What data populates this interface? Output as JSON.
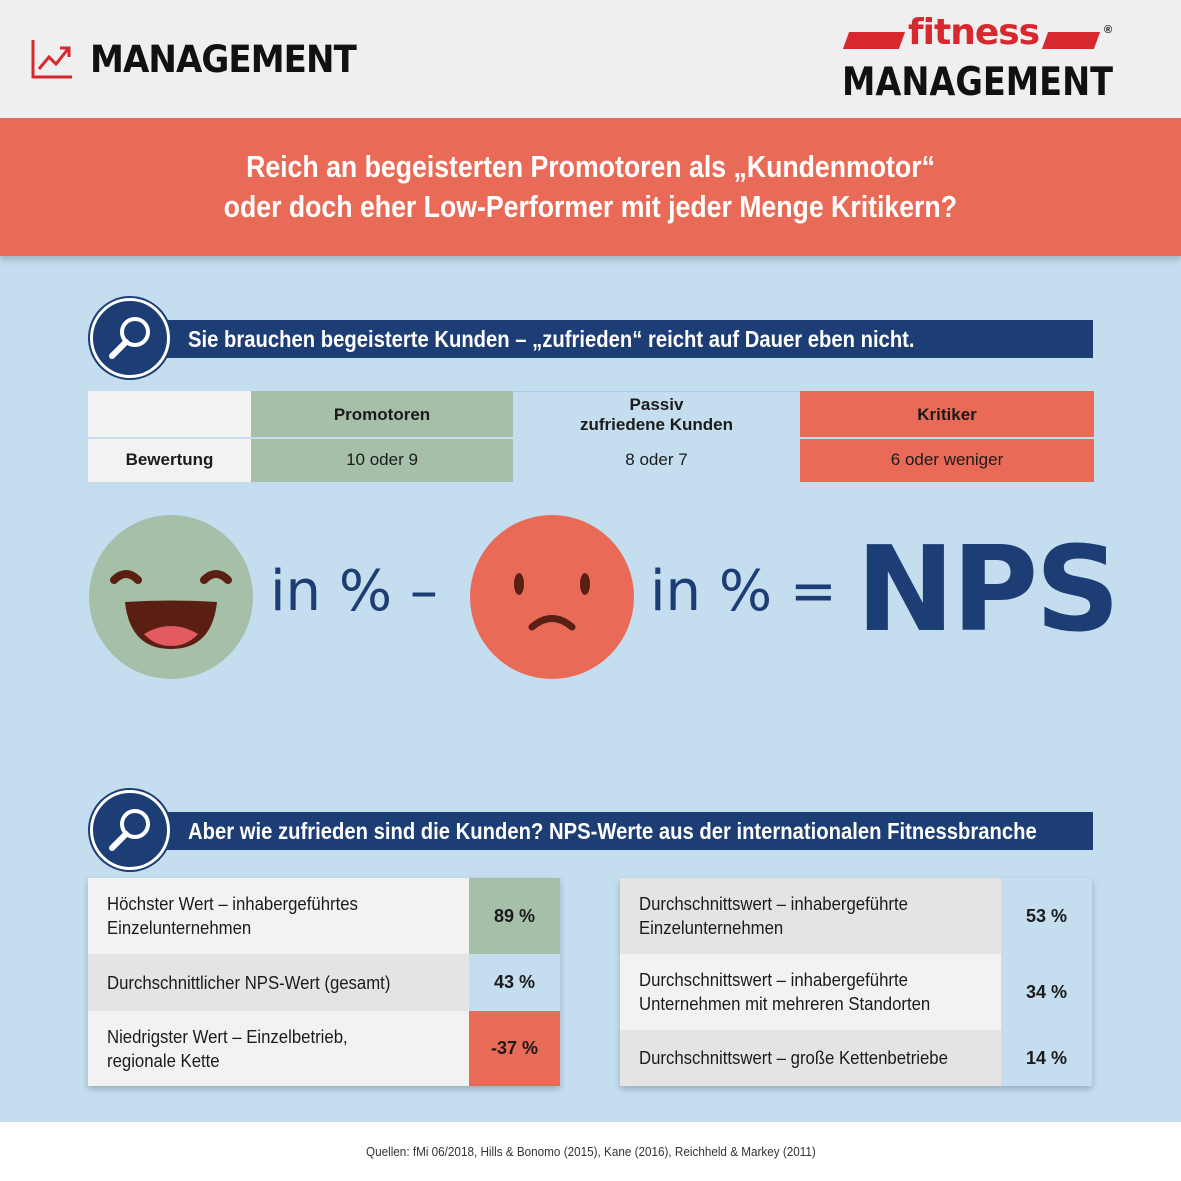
{
  "header": {
    "section_label": "MANAGEMENT",
    "section_icon": "trend-chart-icon",
    "brand_fitness": "fitness",
    "brand_management": "MANAGEMENT",
    "brand_registered": "®"
  },
  "banner": {
    "line1": "Reich an begeisterten Promotoren als „Kundenmotor“",
    "line2": "oder doch eher Low-Performer mit jeder Menge Kritikern?"
  },
  "section1": {
    "heading": "Sie brauchen begeisterte Kunden – „zufrieden“ reicht auf Dauer eben nicht.",
    "icon": "magnifier-icon"
  },
  "rating_table": {
    "row_label": "Bewertung",
    "columns": [
      {
        "header": "Promotoren",
        "header2": "",
        "value": "10 oder 9",
        "color": "#a5bfa9"
      },
      {
        "header": "Passiv",
        "header2": "zufriedene Kunden",
        "value": "8 oder 7",
        "color": "#c4ddef"
      },
      {
        "header": "Kritiker",
        "header2": "",
        "value": "6 oder weniger",
        "color": "#e96b57"
      }
    ]
  },
  "formula": {
    "part1": "in % –",
    "part2": "in % =",
    "result": "NPS",
    "happy_icon": "happy-face-icon",
    "sad_icon": "sad-face-icon"
  },
  "section2": {
    "heading": "Aber wie zufrieden sind die Kunden? NPS-Werte aus der internationalen Fitnessbranche",
    "icon": "magnifier-icon"
  },
  "results_left": [
    {
      "label_line1": "Höchster Wert – inhabergeführtes",
      "label_line2": "Einzelunternehmen",
      "value": "89 %",
      "color": "#a5bfa9"
    },
    {
      "label_line1": "Durchschnittlicher NPS-Wert (gesamt)",
      "label_line2": "",
      "value": "43 %",
      "color": "#c4ddef"
    },
    {
      "label_line1": "Niedrigster Wert – Einzelbetrieb,",
      "label_line2": "regionale Kette",
      "value": "-37 %",
      "color": "#e96b57"
    }
  ],
  "results_right": [
    {
      "label_line1": "Durchschnittswert – inhabergeführte",
      "label_line2": "Einzelunternehmen",
      "value": "53 %"
    },
    {
      "label_line1": "Durchschnittswert – inhabergeführte",
      "label_line2": "Unternehmen mit mehreren Standorten",
      "value": "34 %"
    },
    {
      "label_line1": "Durchschnittswert – große Kettenbetriebe",
      "label_line2": "",
      "value": "14 %"
    }
  ],
  "footer": {
    "sources": "Quellen: fMi 06/2018, Hills & Bonomo (2015), Kane (2016), Reichheld & Markey (2011)"
  },
  "colors": {
    "navy": "#1d3e75",
    "coral": "#e96b57",
    "sage": "#a5bfa9",
    "light_blue": "#c4ddef",
    "brand_red": "#d7282f"
  }
}
